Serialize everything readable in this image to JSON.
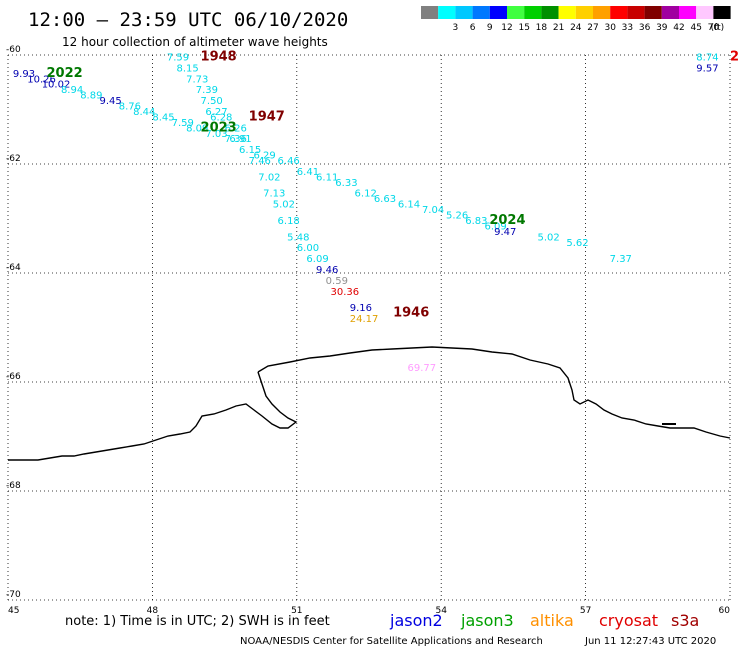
{
  "header": {
    "title": "12:00 – 23:59 UTC 06/10/2020",
    "subtitle": "12 hour collection of altimeter wave heights"
  },
  "legend": {
    "unit": "(ft)",
    "swatches": [
      {
        "color": "#808080",
        "label": ""
      },
      {
        "color": "#00ffff",
        "label": "3"
      },
      {
        "color": "#00c8ff",
        "label": "6"
      },
      {
        "color": "#0078ff",
        "label": "9"
      },
      {
        "color": "#0000ff",
        "label": "12"
      },
      {
        "color": "#40ff40",
        "label": "15"
      },
      {
        "color": "#00d000",
        "label": "18"
      },
      {
        "color": "#009000",
        "label": "21"
      },
      {
        "color": "#ffff00",
        "label": "24"
      },
      {
        "color": "#ffd000",
        "label": "27"
      },
      {
        "color": "#ffa000",
        "label": "30"
      },
      {
        "color": "#ff0000",
        "label": "33"
      },
      {
        "color": "#c80000",
        "label": "36"
      },
      {
        "color": "#800000",
        "label": "39"
      },
      {
        "color": "#a000a0",
        "label": "42"
      },
      {
        "color": "#ff00ff",
        "label": "45"
      },
      {
        "color": "#ffc8ff",
        "label": "70"
      },
      {
        "color": "#000000",
        "label": ""
      }
    ]
  },
  "map": {
    "lon_range": [
      45,
      60
    ],
    "lat_range": [
      -60,
      -70
    ],
    "lon_ticks": [
      "45",
      "48",
      "51",
      "54",
      "57",
      "60"
    ],
    "lat_ticks": [
      "-60",
      "-62",
      "-64",
      "-66",
      "-68",
      "-70"
    ],
    "colors": {
      "cyan": "#00d8e8",
      "blue": "#0000b0",
      "gray": "#909090",
      "red": "#e00000",
      "gold": "#e0a000",
      "pink": "#ff9cff",
      "darkred": "#800000",
      "green": "#007800"
    },
    "wave_labels": [
      {
        "t": "9.93",
        "c": "blue",
        "lon": 45.1,
        "lat": -60.4
      },
      {
        "t": "10.26",
        "c": "blue",
        "lon": 45.4,
        "lat": -60.5
      },
      {
        "t": "10.02",
        "c": "blue",
        "lon": 45.7,
        "lat": -60.6
      },
      {
        "t": "8.94",
        "c": "cyan",
        "lon": 46.1,
        "lat": -60.7
      },
      {
        "t": "8.89",
        "c": "cyan",
        "lon": 46.5,
        "lat": -60.8
      },
      {
        "t": "9.45",
        "c": "blue",
        "lon": 46.9,
        "lat": -60.9
      },
      {
        "t": "8.76",
        "c": "cyan",
        "lon": 47.3,
        "lat": -61.0
      },
      {
        "t": "8.44",
        "c": "cyan",
        "lon": 47.6,
        "lat": -61.1
      },
      {
        "t": "8.45",
        "c": "cyan",
        "lon": 48.0,
        "lat": -61.2
      },
      {
        "t": "7.59",
        "c": "cyan",
        "lon": 48.4,
        "lat": -61.3
      },
      {
        "t": "8.09",
        "c": "cyan",
        "lon": 48.7,
        "lat": -61.4
      },
      {
        "t": "7.03",
        "c": "cyan",
        "lon": 49.1,
        "lat": -61.5
      },
      {
        "t": "7.36",
        "c": "cyan",
        "lon": 49.5,
        "lat": -61.6
      },
      {
        "t": "7.59",
        "c": "cyan",
        "lon": 48.3,
        "lat": -60.1
      },
      {
        "t": "8.15",
        "c": "cyan",
        "lon": 48.5,
        "lat": -60.3
      },
      {
        "t": "7.73",
        "c": "cyan",
        "lon": 48.7,
        "lat": -60.5
      },
      {
        "t": "7.39",
        "c": "cyan",
        "lon": 48.9,
        "lat": -60.7
      },
      {
        "t": "7.50",
        "c": "cyan",
        "lon": 49.0,
        "lat": -60.9
      },
      {
        "t": "6.27",
        "c": "cyan",
        "lon": 49.1,
        "lat": -61.1
      },
      {
        "t": "6.28",
        "c": "cyan",
        "lon": 49.2,
        "lat": -61.2
      },
      {
        "t": "6.26",
        "c": "cyan",
        "lon": 49.5,
        "lat": -61.4
      },
      {
        "t": "6.91",
        "c": "cyan",
        "lon": 49.6,
        "lat": -61.6
      },
      {
        "t": "6.15",
        "c": "cyan",
        "lon": 49.8,
        "lat": -61.8
      },
      {
        "t": "6.29",
        "c": "cyan",
        "lon": 50.1,
        "lat": -61.9
      },
      {
        "t": "7.46",
        "c": "cyan",
        "lon": 50.0,
        "lat": -62.0
      },
      {
        "t": "6.46",
        "c": "cyan",
        "lon": 50.6,
        "lat": -62.0
      },
      {
        "t": "7.02",
        "c": "cyan",
        "lon": 50.2,
        "lat": -62.3
      },
      {
        "t": "6.41",
        "c": "cyan",
        "lon": 51.0,
        "lat": -62.2
      },
      {
        "t": "6.11",
        "c": "cyan",
        "lon": 51.4,
        "lat": -62.3
      },
      {
        "t": "7.13",
        "c": "cyan",
        "lon": 50.3,
        "lat": -62.6
      },
      {
        "t": "6.33",
        "c": "cyan",
        "lon": 51.8,
        "lat": -62.4
      },
      {
        "t": "6.12",
        "c": "cyan",
        "lon": 52.2,
        "lat": -62.6
      },
      {
        "t": "6.63",
        "c": "cyan",
        "lon": 52.6,
        "lat": -62.7
      },
      {
        "t": "5.02",
        "c": "cyan",
        "lon": 50.5,
        "lat": -62.8
      },
      {
        "t": "6.14",
        "c": "cyan",
        "lon": 53.1,
        "lat": -62.8
      },
      {
        "t": "7.04",
        "c": "cyan",
        "lon": 53.6,
        "lat": -62.9
      },
      {
        "t": "6.18",
        "c": "cyan",
        "lon": 50.6,
        "lat": -63.1
      },
      {
        "t": "5.26",
        "c": "cyan",
        "lon": 54.1,
        "lat": -63.0
      },
      {
        "t": "6.83",
        "c": "cyan",
        "lon": 54.5,
        "lat": -63.1
      },
      {
        "t": "5.48",
        "c": "cyan",
        "lon": 50.8,
        "lat": -63.4
      },
      {
        "t": "6.09",
        "c": "cyan",
        "lon": 54.9,
        "lat": -63.2
      },
      {
        "t": "9.47",
        "c": "blue",
        "lon": 55.1,
        "lat": -63.3
      },
      {
        "t": "6.00",
        "c": "cyan",
        "lon": 51.0,
        "lat": -63.6
      },
      {
        "t": "5.02",
        "c": "cyan",
        "lon": 56.0,
        "lat": -63.4
      },
      {
        "t": "5.62",
        "c": "cyan",
        "lon": 56.6,
        "lat": -63.5
      },
      {
        "t": "6.09",
        "c": "cyan",
        "lon": 51.2,
        "lat": -63.8
      },
      {
        "t": "7.37",
        "c": "cyan",
        "lon": 57.5,
        "lat": -63.8
      },
      {
        "t": "9.46",
        "c": "blue",
        "lon": 51.4,
        "lat": -64.0
      },
      {
        "t": "0.59",
        "c": "gray",
        "lon": 51.6,
        "lat": -64.2
      },
      {
        "t": "30.36",
        "c": "red",
        "lon": 51.7,
        "lat": -64.4
      },
      {
        "t": "9.16",
        "c": "blue",
        "lon": 52.1,
        "lat": -64.7
      },
      {
        "t": "24.17",
        "c": "gold",
        "lon": 52.1,
        "lat": -64.9
      },
      {
        "t": "69.77",
        "c": "pink",
        "lon": 53.3,
        "lat": -65.8
      },
      {
        "t": "8.74",
        "c": "cyan",
        "lon": 59.3,
        "lat": -60.1
      },
      {
        "t": "9.57",
        "c": "blue",
        "lon": 59.3,
        "lat": -60.3
      }
    ],
    "pass_labels": [
      {
        "t": "1948",
        "c": "darkred",
        "lon": 49.0,
        "lat": -60.1
      },
      {
        "t": "2022",
        "c": "green",
        "lon": 45.8,
        "lat": -60.4
      },
      {
        "t": "1947",
        "c": "darkred",
        "lon": 50.0,
        "lat": -61.2
      },
      {
        "t": "2023",
        "c": "green",
        "lon": 49.0,
        "lat": -61.4
      },
      {
        "t": "2024",
        "c": "green",
        "lon": 55.0,
        "lat": -63.1
      },
      {
        "t": "1946",
        "c": "darkred",
        "lon": 53.0,
        "lat": -64.8
      },
      {
        "t": "2",
        "c": "red",
        "lon": 60.0,
        "lat": -60.1
      }
    ]
  },
  "note": "note: 1) Time is in UTC; 2) SWH is in feet",
  "missions": [
    {
      "name": "jason2",
      "color": "#0000e0"
    },
    {
      "name": "jason3",
      "color": "#00a000"
    },
    {
      "name": "altika",
      "color": "#ff9000"
    },
    {
      "name": "cryosat",
      "color": "#e00000"
    },
    {
      "name": "s3a",
      "color": "#a00000"
    }
  ],
  "footer": {
    "credit": "NOAA/NESDIS Center for Satellite Applications and Research",
    "timestamp": "Jun 11 12:27:43 UTC 2020"
  }
}
